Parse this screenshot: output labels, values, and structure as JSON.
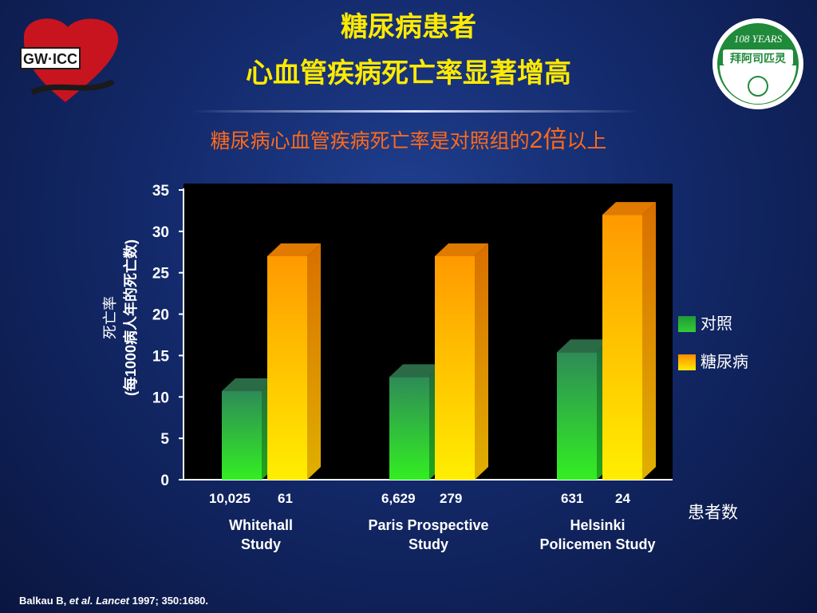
{
  "slide": {
    "title_line1": "糖尿病患者",
    "title_line2": "心血管疾病死亡率显著增高",
    "subtitle_part1": "糖尿病心血管疾病死亡率是对照组的",
    "subtitle_big": "2倍",
    "subtitle_part2": "以上",
    "patients_label": "患者数",
    "citation_part1": "Balkau B, ",
    "citation_italic": "et al. Lancet",
    "citation_part2": " 1997; 350:1680.",
    "logo_left_text": "GW·ICC",
    "logo_right_top_text": "108 YEARS",
    "logo_right_brand_text": "拜阿司匹灵"
  },
  "colors": {
    "control_green": "#33cc33",
    "diabetes_orange": "#ffaa00",
    "title_yellow": "#ffea00",
    "subtitle_orange": "#ff6a1a",
    "plot_background": "#000000"
  },
  "chart_data": {
    "type": "bar",
    "categories": [
      "Whitehall Study",
      "Paris Prospective Study",
      "Helsinki Policemen Study"
    ],
    "category_lines": [
      [
        "Whitehall",
        "Study"
      ],
      [
        "Paris Prospective",
        "Study"
      ],
      [
        "Helsinki",
        "Policemen Study"
      ]
    ],
    "series": [
      {
        "name": "对照",
        "values": [
          10.7,
          12.4,
          15.4
        ],
        "patient_counts": [
          "10,025",
          "6,629",
          "631"
        ]
      },
      {
        "name": "糖尿病",
        "values": [
          27,
          27,
          32
        ],
        "patient_counts": [
          "61",
          "279",
          "24"
        ]
      }
    ],
    "ylabel_line1": "死亡率",
    "ylabel_line2": "(每1000病人年的死亡数)",
    "ylim": [
      0,
      35
    ],
    "yticks": [
      0,
      5,
      10,
      15,
      20,
      25,
      30,
      35
    ],
    "grid": false,
    "legend_position": "right",
    "style": "3d"
  }
}
